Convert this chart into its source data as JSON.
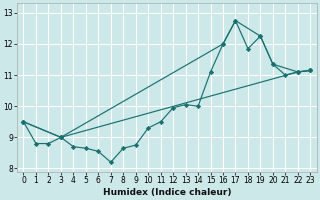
{
  "xlabel": "Humidex (Indice chaleur)",
  "background_color": "#cce8e8",
  "grid_color": "#ffffff",
  "line_color": "#1a7070",
  "xlim": [
    -0.5,
    23.5
  ],
  "ylim": [
    7.9,
    13.3
  ],
  "xticks": [
    0,
    1,
    2,
    3,
    4,
    5,
    6,
    7,
    8,
    9,
    10,
    11,
    12,
    13,
    14,
    15,
    16,
    17,
    18,
    19,
    20,
    21,
    22,
    23
  ],
  "yticks": [
    8,
    9,
    10,
    11,
    12,
    13
  ],
  "series": [
    {
      "x": [
        0,
        1,
        2,
        3,
        4,
        5,
        6,
        7,
        8,
        9,
        10,
        11,
        12,
        13,
        14,
        15,
        16,
        17,
        18,
        19,
        20,
        21,
        22,
        23
      ],
      "y": [
        9.5,
        8.8,
        8.8,
        9.0,
        8.7,
        8.65,
        8.55,
        8.2,
        8.65,
        8.75,
        9.3,
        9.5,
        9.95,
        10.05,
        10.0,
        11.1,
        12.0,
        12.75,
        11.85,
        12.25,
        11.35,
        11.0,
        11.1,
        11.15
      ]
    },
    {
      "x": [
        0,
        3,
        16,
        17,
        19,
        20,
        22,
        23
      ],
      "y": [
        9.5,
        9.0,
        12.0,
        12.75,
        12.25,
        11.35,
        11.1,
        11.15
      ]
    },
    {
      "x": [
        0,
        3,
        22,
        23
      ],
      "y": [
        9.5,
        9.0,
        11.1,
        11.15
      ]
    }
  ]
}
